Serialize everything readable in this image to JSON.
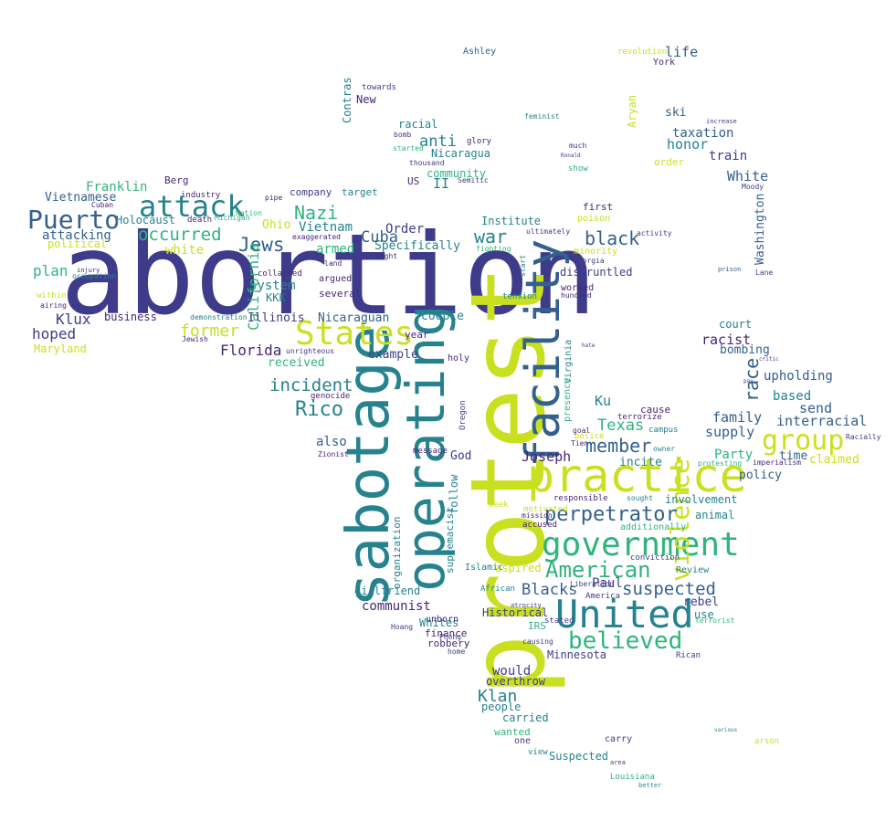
{
  "palette": {
    "indigo": "#3e3c8a",
    "blue": "#33608d",
    "teal": "#26828e",
    "green": "#2fb47c",
    "lime": "#6ece58",
    "yellow": "#c8e020",
    "purple": "#482475",
    "gold": "#fde725"
  },
  "words": [
    {
      "id": "abortion",
      "text": "abortion",
      "color": "indigo"
    },
    {
      "id": "protest",
      "text": "protest",
      "color": "yellow"
    },
    {
      "id": "sabotage",
      "text": "sabotage",
      "color": "teal"
    },
    {
      "id": "operating",
      "text": "operating",
      "color": "teal"
    },
    {
      "id": "facility",
      "text": "facility",
      "color": "blue"
    },
    {
      "id": "practice",
      "text": "practice",
      "color": "yellow"
    },
    {
      "id": "united",
      "text": "United",
      "color": "teal"
    },
    {
      "id": "government",
      "text": "government",
      "color": "green"
    },
    {
      "id": "states",
      "text": "States",
      "color": "yellow"
    },
    {
      "id": "attack",
      "text": "attack",
      "color": "teal"
    },
    {
      "id": "puerto",
      "text": "Puerto",
      "color": "blue"
    },
    {
      "id": "group",
      "text": "group",
      "color": "yellow"
    },
    {
      "id": "violence",
      "text": "violence",
      "color": "yellow"
    },
    {
      "id": "believed",
      "text": "believed",
      "color": "green"
    },
    {
      "id": "american",
      "text": "American",
      "color": "green"
    },
    {
      "id": "perpetrator",
      "text": "perpetrator",
      "color": "blue"
    },
    {
      "id": "rico",
      "text": "Rico",
      "color": "teal"
    },
    {
      "id": "incident",
      "text": "incident",
      "color": "teal"
    },
    {
      "id": "jews",
      "text": "Jews",
      "color": "blue"
    },
    {
      "id": "nazi",
      "text": "Nazi",
      "color": "green"
    },
    {
      "id": "occurred",
      "text": "occurred",
      "color": "green"
    },
    {
      "id": "member",
      "text": "member",
      "color": "blue"
    },
    {
      "id": "suspected",
      "text": "suspected",
      "color": "blue"
    },
    {
      "id": "black",
      "text": "black",
      "color": "blue"
    },
    {
      "id": "war",
      "text": "war",
      "color": "teal"
    },
    {
      "id": "klan",
      "text": "Klan",
      "color": "teal"
    },
    {
      "id": "florida",
      "text": "Florida",
      "color": "purple"
    },
    {
      "id": "former",
      "text": "former",
      "color": "yellow"
    },
    {
      "id": "race",
      "text": "race",
      "color": "blue"
    },
    {
      "id": "california",
      "text": "California",
      "color": "green"
    },
    {
      "id": "cuba",
      "text": "Cuba",
      "color": "blue"
    },
    {
      "id": "blacks",
      "text": "Blacks",
      "color": "blue"
    },
    {
      "id": "communist",
      "text": "communist",
      "color": "purple"
    },
    {
      "id": "klux",
      "text": "Klux",
      "color": "indigo"
    },
    {
      "id": "hoped",
      "text": "hoped",
      "color": "indigo"
    },
    {
      "id": "plan",
      "text": "plan",
      "color": "green"
    },
    {
      "id": "vietnam",
      "text": "Vietnam",
      "color": "teal"
    },
    {
      "id": "anti",
      "text": "anti",
      "color": "teal"
    },
    {
      "id": "texas",
      "text": "Texas",
      "color": "green"
    },
    {
      "id": "joseph",
      "text": "Joseph",
      "color": "purple"
    },
    {
      "id": "interracial",
      "text": "interracial",
      "color": "blue"
    },
    {
      "id": "upholding",
      "text": "upholding",
      "color": "blue"
    },
    {
      "id": "family",
      "text": "family",
      "color": "blue"
    },
    {
      "id": "racist",
      "text": "racist",
      "color": "purple"
    },
    {
      "id": "bombing",
      "text": "bombing",
      "color": "blue"
    },
    {
      "id": "supply",
      "text": "supply",
      "color": "blue"
    },
    {
      "id": "send",
      "text": "send",
      "color": "blue"
    },
    {
      "id": "based",
      "text": "based",
      "color": "teal"
    },
    {
      "id": "party",
      "text": "Party",
      "color": "green"
    },
    {
      "id": "policy",
      "text": "policy",
      "color": "blue"
    },
    {
      "id": "time",
      "text": "time",
      "color": "blue"
    },
    {
      "id": "claimed",
      "text": "claimed",
      "color": "yellow"
    },
    {
      "id": "honor",
      "text": "honor",
      "color": "teal"
    },
    {
      "id": "taxation",
      "text": "taxation",
      "color": "blue"
    },
    {
      "id": "train",
      "text": "train",
      "color": "indigo"
    },
    {
      "id": "white_cap",
      "text": "White",
      "color": "blue"
    },
    {
      "id": "washington",
      "text": "Washington",
      "color": "blue"
    },
    {
      "id": "life",
      "text": "life",
      "color": "blue"
    },
    {
      "id": "ski",
      "text": "ski",
      "color": "blue"
    },
    {
      "id": "aryan",
      "text": "Aryan",
      "color": "yellow"
    },
    {
      "id": "vietnamese",
      "text": "Vietnamese",
      "color": "blue"
    },
    {
      "id": "franklin",
      "text": "Franklin",
      "color": "green"
    },
    {
      "id": "holocaust",
      "text": "Holocaust",
      "color": "teal"
    },
    {
      "id": "attacking",
      "text": "attacking",
      "color": "blue"
    },
    {
      "id": "political",
      "text": "political",
      "color": "yellow"
    },
    {
      "id": "white",
      "text": "white",
      "color": "yellow"
    },
    {
      "id": "maryland",
      "text": "Maryland",
      "color": "yellow"
    },
    {
      "id": "business",
      "text": "business",
      "color": "purple"
    },
    {
      "id": "ohio",
      "text": "Ohio",
      "color": "yellow"
    },
    {
      "id": "armed",
      "text": "armed",
      "color": "green"
    },
    {
      "id": "system",
      "text": "system",
      "color": "teal"
    },
    {
      "id": "kkk",
      "text": "KKK",
      "color": "teal"
    },
    {
      "id": "illinois",
      "text": "Illinois",
      "color": "indigo"
    },
    {
      "id": "nicaraguan",
      "text": "Nicaraguan",
      "color": "blue"
    },
    {
      "id": "order",
      "text": "Order",
      "color": "indigo"
    },
    {
      "id": "specifically",
      "text": "Specifically",
      "color": "teal"
    },
    {
      "id": "couple",
      "text": "couple",
      "color": "teal"
    },
    {
      "id": "contras",
      "text": "Contras",
      "color": "teal"
    },
    {
      "id": "nicaragua",
      "text": "Nicaragua",
      "color": "teal"
    },
    {
      "id": "community",
      "text": "community",
      "color": "green"
    },
    {
      "id": "institute",
      "text": "Institute",
      "color": "teal"
    },
    {
      "id": "disgruntled",
      "text": "disgruntled",
      "color": "indigo"
    },
    {
      "id": "ku",
      "text": "Ku",
      "color": "teal"
    },
    {
      "id": "god",
      "text": "God",
      "color": "indigo"
    },
    {
      "id": "also",
      "text": "also",
      "color": "blue"
    },
    {
      "id": "received",
      "text": "received",
      "color": "green"
    },
    {
      "id": "example",
      "text": "example",
      "color": "indigo"
    },
    {
      "id": "paul",
      "text": "Paul",
      "color": "indigo"
    },
    {
      "id": "rebel",
      "text": "rebel",
      "color": "indigo"
    },
    {
      "id": "would",
      "text": "would",
      "color": "indigo"
    },
    {
      "id": "whites",
      "text": "Whites",
      "color": "teal"
    },
    {
      "id": "minnesota",
      "text": "Minnesota",
      "color": "indigo"
    },
    {
      "id": "girlfriend",
      "text": "girlfriend",
      "color": "teal"
    },
    {
      "id": "historical",
      "text": "Historical",
      "color": "indigo"
    },
    {
      "id": "overthrow",
      "text": "overthrow",
      "color": "indigo"
    },
    {
      "id": "people",
      "text": "people",
      "color": "teal"
    },
    {
      "id": "carried",
      "text": "carried",
      "color": "teal"
    },
    {
      "id": "wanted",
      "text": "wanted",
      "color": "green"
    },
    {
      "id": "suspected2",
      "text": "Suspected",
      "color": "teal"
    },
    {
      "id": "louisiana",
      "text": "Louisiana",
      "color": "green"
    },
    {
      "id": "aspired",
      "text": "aspired",
      "color": "yellow"
    },
    {
      "id": "involvement",
      "text": "involvement",
      "color": "teal"
    },
    {
      "id": "animal",
      "text": "animal",
      "color": "teal"
    },
    {
      "id": "incite",
      "text": "incite",
      "color": "teal"
    },
    {
      "id": "supremacist",
      "text": "supremacist",
      "color": "teal"
    },
    {
      "id": "organization",
      "text": "organization",
      "color": "teal"
    },
    {
      "id": "follow",
      "text": "follow",
      "color": "teal"
    },
    {
      "id": "court",
      "text": "court",
      "color": "teal"
    },
    {
      "id": "use",
      "text": "use",
      "color": "teal"
    },
    {
      "id": "berg",
      "text": "Berg",
      "color": "purple"
    },
    {
      "id": "new",
      "text": "New",
      "color": "purple"
    },
    {
      "id": "racial",
      "text": "racial",
      "color": "teal"
    },
    {
      "id": "ii",
      "text": "II",
      "color": "teal"
    },
    {
      "id": "us",
      "text": "US",
      "color": "purple"
    },
    {
      "id": "york",
      "text": "York",
      "color": "purple"
    },
    {
      "id": "company",
      "text": "company",
      "color": "indigo"
    },
    {
      "id": "target",
      "text": "target",
      "color": "teal"
    },
    {
      "id": "finance",
      "text": "finance",
      "color": "purple"
    },
    {
      "id": "robbery",
      "text": "robbery",
      "color": "purple"
    },
    {
      "id": "review",
      "text": "Review",
      "color": "teal"
    },
    {
      "id": "cause",
      "text": "cause",
      "color": "purple"
    },
    {
      "id": "order_lc",
      "text": "order",
      "color": "yellow"
    },
    {
      "id": "minority",
      "text": "minority",
      "color": "yellow"
    },
    {
      "id": "poison",
      "text": "poison",
      "color": "yellow"
    },
    {
      "id": "first",
      "text": "first",
      "color": "purple"
    },
    {
      "id": "worked",
      "text": "worked",
      "color": "purple"
    },
    {
      "id": "hundred",
      "text": "hundred",
      "color": "purple"
    },
    {
      "id": "irs",
      "text": "IRS",
      "color": "green"
    },
    {
      "id": "year",
      "text": "year",
      "color": "purple"
    },
    {
      "id": "holy",
      "text": "holy",
      "color": "purple"
    },
    {
      "id": "several",
      "text": "several",
      "color": "purple"
    },
    {
      "id": "argued",
      "text": "argued",
      "color": "purple"
    },
    {
      "id": "collapsed",
      "text": "collapsed",
      "color": "purple"
    },
    {
      "id": "death",
      "text": "death",
      "color": "purple"
    },
    {
      "id": "industry",
      "text": "industry",
      "color": "purple"
    },
    {
      "id": "virginia",
      "text": "Virginia",
      "color": "teal"
    },
    {
      "id": "presence",
      "text": "presence",
      "color": "green"
    },
    {
      "id": "arson",
      "text": "arson",
      "color": "yellow"
    },
    {
      "id": "genocide",
      "text": "genocide",
      "color": "purple"
    },
    {
      "id": "zionist",
      "text": "Zionist",
      "color": "purple"
    },
    {
      "id": "message",
      "text": "message",
      "color": "purple"
    },
    {
      "id": "glory",
      "text": "glory",
      "color": "purple"
    },
    {
      "id": "accused",
      "text": "accused",
      "color": "purple"
    },
    {
      "id": "responsible",
      "text": "responsible",
      "color": "purple"
    },
    {
      "id": "mission",
      "text": "mission",
      "color": "purple"
    },
    {
      "id": "motivated",
      "text": "motivated",
      "color": "yellow"
    },
    {
      "id": "week",
      "text": "week",
      "color": "yellow"
    },
    {
      "id": "unborn",
      "text": "unborn",
      "color": "purple"
    },
    {
      "id": "ashley",
      "text": "Ashley",
      "color": "blue"
    },
    {
      "id": "revolution",
      "text": "revolution",
      "color": "yellow"
    },
    {
      "id": "stated",
      "text": "stated",
      "color": "indigo"
    },
    {
      "id": "demonstration",
      "text": "demonstration",
      "color": "teal"
    },
    {
      "id": "jewish",
      "text": "Jewish",
      "color": "purple"
    },
    {
      "id": "occupation",
      "text": "occupation",
      "color": "teal"
    },
    {
      "id": "injury",
      "text": "injury",
      "color": "purple"
    },
    {
      "id": "within",
      "text": "within",
      "color": "yellow"
    },
    {
      "id": "airing",
      "text": "airing",
      "color": "purple"
    },
    {
      "id": "carry",
      "text": "carry",
      "color": "indigo"
    },
    {
      "id": "one",
      "text": "one",
      "color": "indigo"
    },
    {
      "id": "view",
      "text": "view",
      "color": "teal"
    },
    {
      "id": "african",
      "text": "African",
      "color": "teal"
    },
    {
      "id": "atrocity",
      "text": "atrocity",
      "color": "indigo"
    },
    {
      "id": "islamic",
      "text": "Islamic",
      "color": "teal"
    },
    {
      "id": "liberation",
      "text": "Liberation",
      "color": "indigo"
    },
    {
      "id": "conviction",
      "text": "conviction",
      "color": "indigo"
    },
    {
      "id": "america",
      "text": "America",
      "color": "indigo"
    },
    {
      "id": "rican",
      "text": "Rican",
      "color": "indigo"
    },
    {
      "id": "terrorist",
      "text": "terrorist",
      "color": "green"
    },
    {
      "id": "campus",
      "text": "campus",
      "color": "teal"
    },
    {
      "id": "terrorize",
      "text": "terrorize",
      "color": "purple"
    },
    {
      "id": "police",
      "text": "police",
      "color": "yellow"
    },
    {
      "id": "goal",
      "text": "goal",
      "color": "purple"
    },
    {
      "id": "owner",
      "text": "owner",
      "color": "teal"
    },
    {
      "id": "protesting",
      "text": "protesting",
      "color": "green"
    },
    {
      "id": "racially",
      "text": "Racially",
      "color": "indigo"
    },
    {
      "id": "imperialism",
      "text": "imperialism",
      "color": "purple"
    },
    {
      "id": "sought",
      "text": "sought",
      "color": "teal"
    },
    {
      "id": "activity",
      "text": "activity",
      "color": "indigo"
    },
    {
      "id": "georgia",
      "text": "Georgia",
      "color": "indigo"
    },
    {
      "id": "lane",
      "text": "Lane",
      "color": "indigo"
    },
    {
      "id": "moody",
      "text": "Moody",
      "color": "indigo"
    },
    {
      "id": "increase",
      "text": "increase",
      "color": "indigo"
    },
    {
      "id": "feminist",
      "text": "feminist",
      "color": "teal"
    },
    {
      "id": "show",
      "text": "show",
      "color": "green"
    },
    {
      "id": "much",
      "text": "much",
      "color": "indigo"
    },
    {
      "id": "towards",
      "text": "towards",
      "color": "indigo"
    },
    {
      "id": "bomb",
      "text": "bomb",
      "color": "indigo"
    },
    {
      "id": "started",
      "text": "started",
      "color": "green"
    },
    {
      "id": "thousand",
      "text": "thousand",
      "color": "indigo"
    },
    {
      "id": "semitic",
      "text": "Semitic",
      "color": "indigo"
    },
    {
      "id": "fighting",
      "text": "fighting",
      "color": "green"
    },
    {
      "id": "ultimately",
      "text": "ultimately",
      "color": "indigo"
    },
    {
      "id": "hoang",
      "text": "Hoang",
      "color": "indigo"
    },
    {
      "id": "phong",
      "text": "Phong",
      "color": "indigo"
    },
    {
      "id": "home",
      "text": "home",
      "color": "indigo"
    },
    {
      "id": "causing",
      "text": "causing",
      "color": "indigo"
    },
    {
      "id": "additionally",
      "text": "additionally",
      "color": "green"
    },
    {
      "id": "exaggerated",
      "text": "exaggerated",
      "color": "purple"
    },
    {
      "id": "nation",
      "text": "Nation",
      "color": "green"
    },
    {
      "id": "pipe",
      "text": "pipe",
      "color": "purple"
    },
    {
      "id": "michigan",
      "text": "Michigan",
      "color": "green"
    },
    {
      "id": "cuban",
      "text": "Cuban",
      "color": "purple"
    },
    {
      "id": "unrighteous",
      "text": "unrighteous",
      "color": "indigo"
    },
    {
      "id": "land",
      "text": "land",
      "color": "purple"
    },
    {
      "id": "right",
      "text": "right",
      "color": "purple"
    },
    {
      "id": "oregon",
      "text": "Oregon",
      "color": "indigo"
    },
    {
      "id": "tension",
      "text": "tension",
      "color": "teal"
    },
    {
      "id": "start",
      "text": "start",
      "color": "teal"
    },
    {
      "id": "tien",
      "text": "Tien",
      "color": "purple"
    },
    {
      "id": "hate",
      "text": "hate",
      "color": "indigo"
    },
    {
      "id": "ronald",
      "text": "Ronald",
      "color": "indigo"
    },
    {
      "id": "pay",
      "text": "pay",
      "color": "indigo"
    },
    {
      "id": "critic",
      "text": "critic",
      "color": "indigo"
    },
    {
      "id": "prison",
      "text": "prison",
      "color": "blue"
    },
    {
      "id": "better",
      "text": "better",
      "color": "teal"
    },
    {
      "id": "area",
      "text": "area",
      "color": "indigo"
    },
    {
      "id": "various",
      "text": "various",
      "color": "teal"
    }
  ]
}
